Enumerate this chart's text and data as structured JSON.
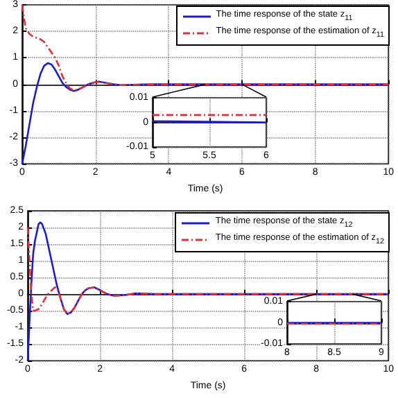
{
  "chart_data": [
    {
      "type": "line",
      "xlabel": "Time (s)",
      "xlim": [
        0,
        10
      ],
      "ylim": [
        -3,
        3
      ],
      "xticks": [
        0,
        2,
        4,
        6,
        8,
        10
      ],
      "yticks": [
        -3,
        -2,
        -1,
        0,
        1,
        2,
        3
      ],
      "grid": true,
      "legend": "top right",
      "marker": "none",
      "series": [
        {
          "name": "The time response of the state z$_{11}$",
          "color": "#1c1cc8",
          "line_style": "solid",
          "x": [
            0,
            0.1,
            0.2,
            0.3,
            0.4,
            0.5,
            0.6,
            0.7,
            0.8,
            0.9,
            1.0,
            1.1,
            1.2,
            1.3,
            1.4,
            1.5,
            1.6,
            1.8,
            2.0,
            2.1,
            2.3,
            2.5,
            2.7,
            3.0,
            3.5,
            4,
            10
          ],
          "values": [
            -3,
            -2.3,
            -1.5,
            -0.7,
            -0.1,
            0.4,
            0.7,
            0.8,
            0.75,
            0.55,
            0.3,
            0.05,
            -0.1,
            -0.2,
            -0.25,
            -0.22,
            -0.15,
            0,
            0.08,
            0.1,
            0.05,
            0,
            -0.03,
            -0.02,
            0,
            0,
            0
          ]
        },
        {
          "name": "The time response of the estimation of z$_{11}$",
          "color": "#e0303a",
          "line_style": "dashed",
          "x": [
            0,
            0.05,
            0.1,
            0.2,
            0.3,
            0.4,
            0.5,
            0.6,
            0.7,
            0.8,
            0.9,
            1.0,
            1.1,
            1.2,
            1.3,
            1.4,
            1.5,
            1.6,
            1.8,
            2.0,
            2.1,
            2.3,
            2.5,
            2.7,
            3.0,
            3.5,
            4,
            10
          ],
          "values": [
            3,
            2.5,
            2.1,
            1.9,
            1.8,
            1.75,
            1.7,
            1.6,
            1.4,
            1.2,
            1.0,
            0.7,
            0.3,
            0.05,
            -0.15,
            -0.22,
            -0.2,
            -0.15,
            0,
            0.08,
            0.1,
            0.05,
            0,
            -0.03,
            -0.02,
            0,
            0,
            0
          ]
        }
      ]
    },
    {
      "type": "line",
      "xlim": [
        5,
        6
      ],
      "ylim": [
        -0.01,
        0.01
      ],
      "xticks": [
        5,
        5.5,
        6
      ],
      "yticks": [
        -0.01,
        0,
        0.01
      ],
      "grid": true,
      "marker": "none",
      "series": [
        {
          "color": "#1c1cc8",
          "line_style": "solid",
          "x": [
            5,
            6
          ],
          "values": [
            0.0005,
            0
          ]
        },
        {
          "color": "#e0303a",
          "line_style": "dashed",
          "x": [
            5,
            6
          ],
          "values": [
            0.003,
            0.003
          ]
        }
      ]
    },
    {
      "type": "line",
      "xlabel": "Time (s)",
      "xlim": [
        0,
        10
      ],
      "ylim": [
        -2,
        2.5
      ],
      "xticks": [
        0,
        2,
        4,
        6,
        8,
        10
      ],
      "yticks": [
        -2,
        -1.5,
        -1,
        -0.5,
        0,
        0.5,
        1,
        1.5,
        2,
        2.5
      ],
      "grid": true,
      "legend": "top right",
      "marker": "none",
      "series": [
        {
          "name": "The time response of the state z$_{12}$",
          "color": "#1c1cc8",
          "line_style": "solid",
          "x": [
            0,
            0.05,
            0.1,
            0.15,
            0.2,
            0.3,
            0.35,
            0.4,
            0.5,
            0.6,
            0.7,
            0.8,
            0.9,
            1.0,
            1.1,
            1.2,
            1.3,
            1.4,
            1.5,
            1.6,
            1.7,
            1.85,
            2.0,
            2.2,
            2.4,
            2.7,
            3.0,
            3.5,
            4,
            10
          ],
          "values": [
            -2,
            -0.8,
            0.3,
            1.2,
            1.6,
            2.1,
            2.15,
            2.1,
            1.8,
            1.3,
            0.8,
            0.3,
            -0.1,
            -0.45,
            -0.6,
            -0.55,
            -0.4,
            -0.2,
            0,
            0.12,
            0.18,
            0.2,
            0.12,
            0,
            -0.05,
            -0.03,
            0.02,
            0,
            0,
            0
          ]
        },
        {
          "name": "The time response of the estimation of z$_{12}$",
          "color": "#e0303a",
          "line_style": "dashed",
          "x": [
            0,
            0.05,
            0.1,
            0.15,
            0.2,
            0.3,
            0.4,
            0.5,
            0.6,
            0.7,
            0.75,
            0.8,
            0.9,
            1.0,
            1.1,
            1.2,
            1.3,
            1.4,
            1.5,
            1.6,
            1.7,
            1.85,
            2.0,
            2.2,
            2.4,
            2.7,
            3.0,
            3.5,
            4,
            10
          ],
          "values": [
            2,
            1,
            0,
            -0.5,
            -0.5,
            -0.45,
            -0.3,
            -0.1,
            0.05,
            0.15,
            0.2,
            0.2,
            -0.1,
            -0.45,
            -0.6,
            -0.55,
            -0.4,
            -0.2,
            0,
            0.12,
            0.18,
            0.2,
            0.12,
            0,
            -0.05,
            -0.03,
            0.02,
            0,
            0,
            0
          ]
        }
      ]
    },
    {
      "type": "line",
      "xlim": [
        8,
        9
      ],
      "ylim": [
        -0.01,
        0.01
      ],
      "xticks": [
        8,
        8.5,
        9
      ],
      "yticks": [
        -0.01,
        0,
        0.01
      ],
      "grid": true,
      "marker": "none",
      "series": [
        {
          "color": "#1c1cc8",
          "line_style": "solid",
          "x": [
            8,
            9
          ],
          "values": [
            0,
            0
          ]
        },
        {
          "color": "#e0303a",
          "line_style": "dashed",
          "x": [
            8,
            9
          ],
          "values": [
            -0.0005,
            -0.0005
          ]
        }
      ]
    }
  ]
}
